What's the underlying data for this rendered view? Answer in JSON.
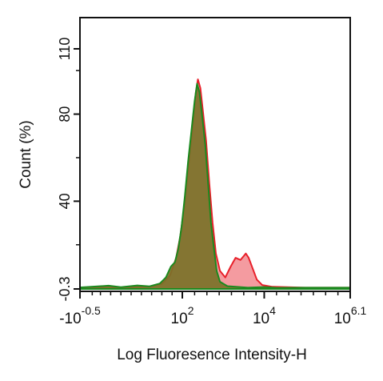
{
  "chart_data": {
    "type": "area",
    "xlabel": "Log Fluoresence Intensity-H",
    "ylabel": "Count  (%)",
    "y_ticks": [
      {
        "value": 110,
        "label": "110"
      },
      {
        "value": 80,
        "label": "80"
      },
      {
        "value": 40,
        "label": "40"
      },
      {
        "value": -0.3,
        "label": "-0.3"
      }
    ],
    "x_ticks": [
      {
        "log": -0.5,
        "base": "-10",
        "exp": "-0.5"
      },
      {
        "log": 2,
        "base": "10",
        "exp": "2"
      },
      {
        "log": 4,
        "base": "10",
        "exp": "4"
      },
      {
        "log": 6.1,
        "base": "10",
        "exp": "6.1"
      }
    ],
    "xlim_log": [
      -0.5,
      6.1
    ],
    "ylim": [
      -0.3,
      110
    ],
    "series": [
      {
        "color": "#e8202a",
        "fill": "#f28a8f",
        "points": [
          [
            -0.5,
            0.3
          ],
          [
            0.6,
            0.3
          ],
          [
            1.2,
            0.8
          ],
          [
            1.5,
            2.0
          ],
          [
            1.7,
            6.0
          ],
          [
            1.85,
            14.0
          ],
          [
            1.95,
            24.0
          ],
          [
            2.05,
            38.0
          ],
          [
            2.15,
            56.0
          ],
          [
            2.25,
            74.0
          ],
          [
            2.33,
            90.0
          ],
          [
            2.38,
            96.0
          ],
          [
            2.44,
            92.0
          ],
          [
            2.5,
            82.0
          ],
          [
            2.58,
            68.0
          ],
          [
            2.66,
            48.0
          ],
          [
            2.74,
            30.0
          ],
          [
            2.82,
            16.0
          ],
          [
            2.92,
            8.0
          ],
          [
            3.05,
            5.0
          ],
          [
            3.18,
            10.0
          ],
          [
            3.3,
            14.0
          ],
          [
            3.42,
            13.0
          ],
          [
            3.55,
            16.0
          ],
          [
            3.62,
            14.0
          ],
          [
            3.72,
            9.0
          ],
          [
            3.82,
            4.0
          ],
          [
            3.95,
            1.5
          ],
          [
            4.2,
            0.7
          ],
          [
            5.0,
            0.3
          ],
          [
            6.1,
            0.3
          ]
        ]
      },
      {
        "color": "#1b8a1f",
        "fill": "#7a7228",
        "points": [
          [
            -0.5,
            0.4
          ],
          [
            0.2,
            1.2
          ],
          [
            0.5,
            0.5
          ],
          [
            0.9,
            1.3
          ],
          [
            1.2,
            0.9
          ],
          [
            1.45,
            2.2
          ],
          [
            1.6,
            5.0
          ],
          [
            1.72,
            10.0
          ],
          [
            1.82,
            12.0
          ],
          [
            1.9,
            18.0
          ],
          [
            1.98,
            28.0
          ],
          [
            2.06,
            42.0
          ],
          [
            2.14,
            58.0
          ],
          [
            2.22,
            72.0
          ],
          [
            2.3,
            86.0
          ],
          [
            2.36,
            94.0
          ],
          [
            2.42,
            90.0
          ],
          [
            2.48,
            80.0
          ],
          [
            2.56,
            66.0
          ],
          [
            2.63,
            48.0
          ],
          [
            2.7,
            30.0
          ],
          [
            2.76,
            20.0
          ],
          [
            2.84,
            8.0
          ],
          [
            2.92,
            3.0
          ],
          [
            3.1,
            1.0
          ],
          [
            3.6,
            0.3
          ],
          [
            4.0,
            0.6
          ],
          [
            4.3,
            0.2
          ],
          [
            5.0,
            0.3
          ],
          [
            6.1,
            0.3
          ]
        ]
      }
    ]
  }
}
